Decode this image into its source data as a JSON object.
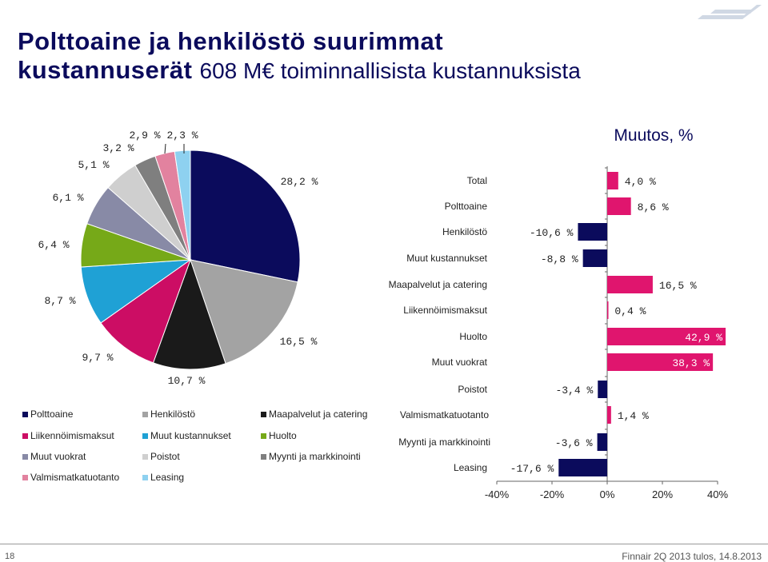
{
  "slide": {
    "title_main": "Polttoaine ja henkilöstö suurimmat kustannuserät",
    "title_line1": "Polttoaine ja henkilöstö suurimmat",
    "title_line2_bold": "kustannuserät",
    "title_line2_sub": "608 M€ toiminnallisista kustannuksista",
    "page_number": "18",
    "footer": "Finnair 2Q 2013 tulos, 14.8.2013"
  },
  "colors": {
    "title": "#0b0b5c",
    "bar": "#0b0b5c",
    "bar_positive": "#e0156e"
  },
  "chart_data": [
    {
      "type": "pie",
      "categories": [
        "Polttoaine",
        "Henkilöstö",
        "Maapalvelut ja catering",
        "Liikennöimismaksut",
        "Muut kustannukset",
        "Huolto",
        "Muut vuokrat",
        "Poistot",
        "Myynti ja markkinointi",
        "Valmismatkatuotanto",
        "Leasing"
      ],
      "values": [
        28.2,
        16.5,
        10.7,
        9.7,
        8.7,
        6.4,
        6.1,
        5.1,
        3.2,
        2.9,
        2.3
      ],
      "labels": [
        "28,2 %",
        "16,5 %",
        "10,7 %",
        "9,7 %",
        "8,7 %",
        "6,4 %",
        "6,1 %",
        "5,1 %",
        "3,2 %",
        "2,9 %",
        "2,3 %"
      ],
      "colors": [
        "#0b0b5c",
        "#a3a3a3",
        "#1a1a1a",
        "#cc0d64",
        "#1fa1d5",
        "#76a918",
        "#888aa6",
        "#cfcfcf",
        "#7f7f7f",
        "#e2829f",
        "#8ed1f0"
      ],
      "legend": [
        {
          "label": "Polttoaine",
          "color": "#0b0b5c"
        },
        {
          "label": "Henkilöstö",
          "color": "#a3a3a3"
        },
        {
          "label": "Maapalvelut ja catering",
          "color": "#1a1a1a"
        },
        {
          "label": "Liikennöimismaksut",
          "color": "#cc0d64"
        },
        {
          "label": "Muut kustannukset",
          "color": "#1fa1d5"
        },
        {
          "label": "Huolto",
          "color": "#76a918"
        },
        {
          "label": "Muut vuokrat",
          "color": "#888aa6"
        },
        {
          "label": "Poistot",
          "color": "#cfcfcf"
        },
        {
          "label": "Myynti ja markkinointi",
          "color": "#7f7f7f"
        },
        {
          "label": "Valmismatkatuotanto",
          "color": "#e2829f"
        },
        {
          "label": "Leasing",
          "color": "#8ed1f0"
        }
      ]
    },
    {
      "type": "bar",
      "orientation": "horizontal",
      "title": "Muutos, %",
      "categories": [
        "Total",
        "Polttoaine",
        "Henkilöstö",
        "Muut kustannukset",
        "Maapalvelut ja catering",
        "Liikennöimismaksut",
        "Huolto",
        "Muut vuokrat",
        "Poistot",
        "Valmismatkatuotanto",
        "Myynti ja markkinointi",
        "Leasing"
      ],
      "values": [
        4.0,
        8.6,
        -10.6,
        -8.8,
        16.5,
        0.4,
        42.9,
        38.3,
        -3.4,
        1.4,
        -3.6,
        -17.6
      ],
      "labels": [
        "4,0 %",
        "8,6 %",
        "-10,6 %",
        "-8,8 %",
        "16,5 %",
        "0,4 %",
        "42,9 %",
        "38,3 %",
        "-3,4 %",
        "1,4 %",
        "-3,6 %",
        "-17,6 %"
      ],
      "xlim": [
        -40,
        45
      ],
      "xticks": [
        -40,
        -20,
        0,
        20,
        40
      ],
      "xtick_labels": [
        "-40%",
        "-20%",
        "0%",
        "20%",
        "40%"
      ]
    }
  ]
}
